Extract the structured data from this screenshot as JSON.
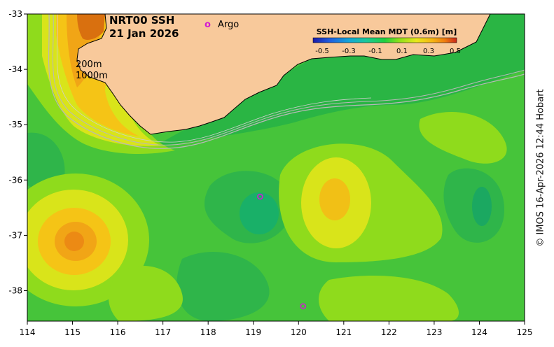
{
  "title": {
    "line1": "NRT00 SSH",
    "line2": "21 Jan 2026"
  },
  "legend": {
    "argo_symbol": "o",
    "argo_label": "Argo",
    "colorbar_title": "SSH-Local Mean MDT (0.6m) [m]",
    "colorbar_ticks": [
      "-0.5",
      "-0.3",
      "-0.1",
      "0.1",
      "0.3",
      "0.5"
    ],
    "colorbar_colors": [
      "#1a1aa8",
      "#1f5fe0",
      "#12a6d8",
      "#19c99a",
      "#1fcf3f",
      "#8ee01a",
      "#e8e81a",
      "#f5b512",
      "#ee7a10",
      "#c7261a"
    ]
  },
  "isobath_labels": [
    "200m",
    "1000m"
  ],
  "credit": "© IMOS 16-Apr-2026 12:44 Hobart",
  "axes": {
    "x_ticks": [
      "114",
      "115",
      "116",
      "117",
      "118",
      "119",
      "120",
      "121",
      "122",
      "123",
      "124",
      "125"
    ],
    "y_ticks": [
      "-33",
      "-34",
      "-35",
      "-36",
      "-37",
      "-38"
    ]
  },
  "colors": {
    "land": "#f8c99b",
    "ocean_base": "#46c43a",
    "coast": "#000000",
    "isobath": "#b8b8b8",
    "argo": "#d21bd2"
  },
  "argo_floats": [
    {
      "lon": 119.15,
      "lat": -36.3
    },
    {
      "lon": 120.1,
      "lat": -38.28
    }
  ]
}
